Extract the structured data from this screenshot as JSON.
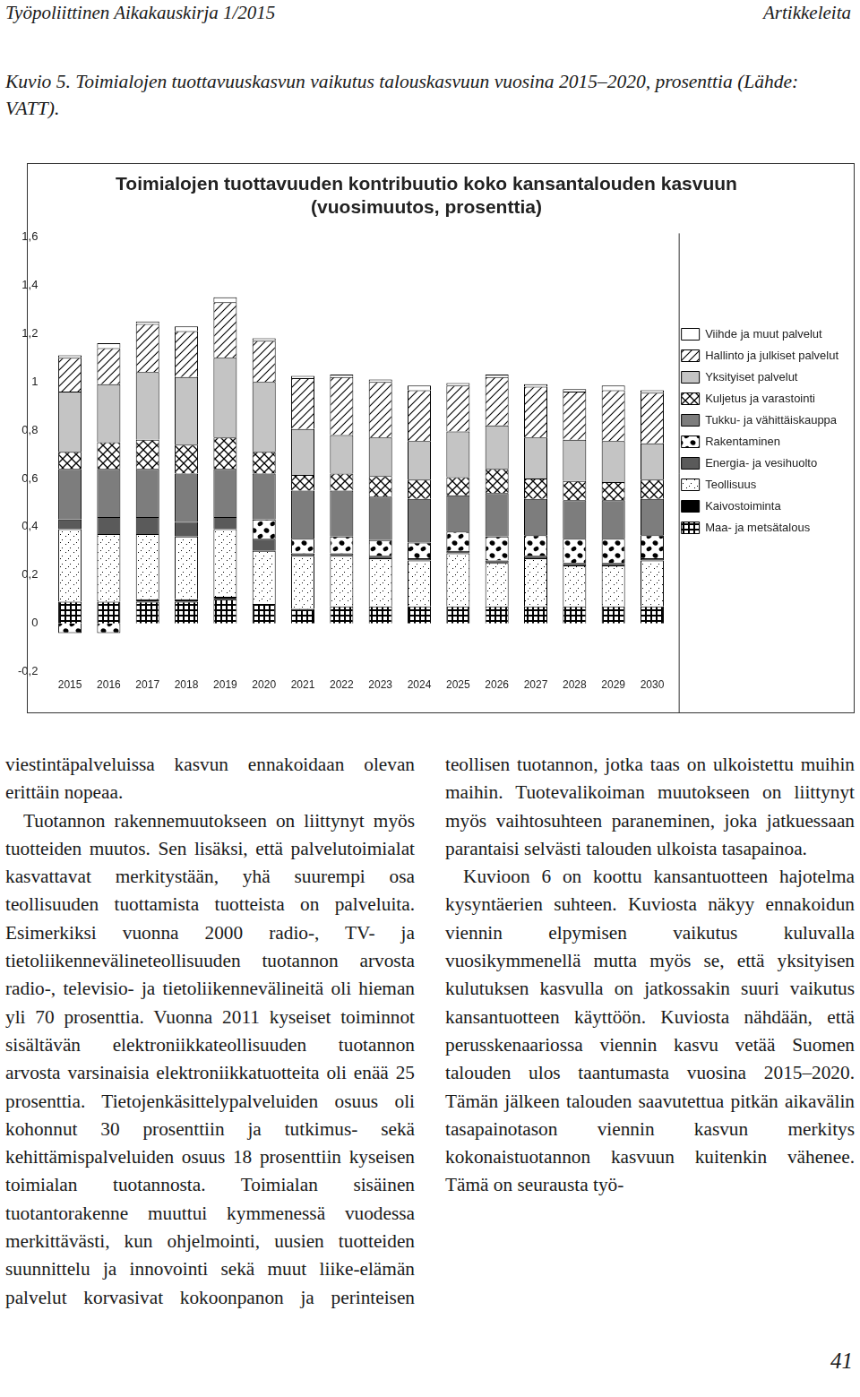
{
  "header": {
    "journal": "Työpoliittinen Aikakauskirja 1/2015",
    "section": "Artikkeleita"
  },
  "caption": "Kuvio 5. Toimialojen tuottavuuskasvun vaikutus talouskasvuun vuosina 2015–2020, prosenttia (Lähde: VATT).",
  "chart_data": {
    "type": "bar",
    "stacked": true,
    "grid": false,
    "legend": "right",
    "title": [
      "Toimialojen tuottavuuden kontribuutio koko kansantalouden kasvuun",
      "(vuosimuutos, prosenttia)"
    ],
    "categories": [
      "2015",
      "2016",
      "2017",
      "2018",
      "2019",
      "2020",
      "2021",
      "2022",
      "2023",
      "2024",
      "2025",
      "2026",
      "2027",
      "2028",
      "2029",
      "2030"
    ],
    "ylim": [
      -0.2,
      1.6
    ],
    "yticks": [
      {
        "value": -0.2,
        "label": "-0,2"
      },
      0,
      {
        "value": 0.2,
        "label": "0,2"
      },
      {
        "value": 0.4,
        "label": "0,4"
      },
      {
        "value": 0.6,
        "label": "0,6"
      },
      {
        "value": 0.8,
        "label": "0,8"
      },
      1,
      {
        "value": 1.2,
        "label": "1,2"
      },
      {
        "value": 1.4,
        "label": "1,4"
      },
      {
        "value": 1.6,
        "label": "1,6"
      }
    ],
    "series": [
      {
        "name": "Maa- ja metsätalous",
        "color": "#000000",
        "values": [
          0.09,
          0.09,
          0.09,
          0.09,
          0.1,
          0.08,
          0.06,
          0.07,
          0.07,
          0.07,
          0.07,
          0.07,
          0.07,
          0.07,
          0.07,
          0.07
        ]
      },
      {
        "name": "Kaivostoiminta",
        "color": "#000000",
        "values": [
          0,
          0,
          0.01,
          0.01,
          0.01,
          0,
          0,
          0,
          0,
          0,
          0,
          0,
          0,
          0,
          0,
          0
        ]
      },
      {
        "name": "Teollisuus",
        "color": "#000000",
        "values": [
          0.3,
          0.28,
          0.27,
          0.26,
          0.28,
          0.22,
          0.22,
          0.21,
          0.2,
          0.19,
          0.22,
          0.18,
          0.2,
          0.17,
          0.17,
          0.19
        ]
      },
      {
        "name": "Energia- ja vesihuolto",
        "color": "#5a5a5a",
        "values": [
          0.04,
          0.07,
          0.07,
          0.06,
          0.05,
          0.05,
          0.01,
          0.01,
          0.01,
          0.01,
          0.01,
          0.01,
          0.01,
          0.01,
          0.01,
          0.01
        ]
      },
      {
        "name": "Rakentaminen",
        "color": "#000000",
        "values": [
          -0.04,
          -0.04,
          0,
          0,
          0,
          0.08,
          0.06,
          0.07,
          0.065,
          0.065,
          0.08,
          0.1,
          0.085,
          0.1,
          0.1,
          0.095
        ]
      },
      {
        "name": "Tukku- ja vähittäiskauppa",
        "color": "#7d7d7d",
        "values": [
          0.21,
          0.2,
          0.2,
          0.2,
          0.2,
          0.19,
          0.2,
          0.19,
          0.18,
          0.18,
          0.15,
          0.18,
          0.15,
          0.16,
          0.16,
          0.15
        ]
      },
      {
        "name": "Kuljetus ja varastointi",
        "color": "#000000",
        "values": [
          0.07,
          0.11,
          0.12,
          0.12,
          0.13,
          0.09,
          0.065,
          0.07,
          0.085,
          0.08,
          0.075,
          0.1,
          0.085,
          0.08,
          0.075,
          0.08
        ]
      },
      {
        "name": "Yksityiset palvelut",
        "color": "#c4c4c4",
        "values": [
          0.25,
          0.24,
          0.28,
          0.28,
          0.33,
          0.29,
          0.19,
          0.16,
          0.16,
          0.16,
          0.19,
          0.18,
          0.17,
          0.17,
          0.17,
          0.15
        ]
      },
      {
        "name": "Hallinto ja julkiset palvelut",
        "color": "#000000",
        "values": [
          0.14,
          0.15,
          0.2,
          0.19,
          0.23,
          0.17,
          0.21,
          0.24,
          0.23,
          0.21,
          0.19,
          0.2,
          0.21,
          0.2,
          0.21,
          0.21
        ]
      },
      {
        "name": "Viihde ja muut palvelut",
        "color": "#ffffff",
        "values": [
          0.01,
          0.02,
          0.01,
          0.02,
          0.02,
          0.01,
          0.01,
          0.01,
          0.01,
          0.02,
          0.01,
          0.01,
          0.01,
          0.01,
          0.02,
          0.01
        ]
      }
    ]
  },
  "body": {
    "paragraphs": [
      "viestintäpalveluissa kasvun ennakoidaan olevan erittäin nopeaa.",
      "Tuotannon rakennemuutokseen on liittynyt myös tuotteiden muutos. Sen lisäksi, että palvelutoimialat kasvattavat merkitystään, yhä suurempi osa teollisuuden tuottamista tuotteista on palveluita. Esimerkiksi vuonna 2000 radio-, TV- ja tietoliikennevälineteollisuuden tuotannon arvosta radio-, televisio- ja tietoliikennevälineitä oli hieman yli 70 prosenttia. Vuonna 2011 kyseiset toiminnot sisältävän elektroniikkateollisuuden tuotannon arvosta varsinaisia elektroniikkatuotteita oli enää 25 prosenttia. Tietojenkäsittelypalveluiden osuus oli kohonnut 30 prosenttiin ja tutkimus- sekä kehittämispalveluiden osuus 18 prosenttiin kyseisen toimialan tuotannosta. Toimialan sisäinen tuotantorakenne muuttui kymmenessä vuodessa merkittävästi, kun ohjelmointi, uusien tuotteiden suunnittelu ja innovointi sekä muut liike-elämän palvelut korvasivat kokoonpanon ja perinteisen teollisen tuotannon, jotka taas on ulkoistettu muihin maihin. Tuotevalikoiman muutokseen on liittynyt myös vaihtosuhteen paraneminen, joka jatkuessaan parantaisi selvästi talouden ulkoista tasapainoa.",
      "Kuvioon 6 on koottu kansantuotteen hajotelma kysyntäerien suhteen. Kuviosta näkyy ennakoidun viennin elpymisen vaikutus kuluvalla vuosikymmenellä mutta myös se, että yksityisen kulutuksen kasvulla on jatkossakin suuri vaikutus kansantuotteen käyttöön. Kuviosta nähdään, että perusskenaariossa viennin kasvu vetää Suomen talouden ulos taantumasta vuosina 2015–2020. Tämän jälkeen talouden saavutettua pitkän aikavälin tasapainotason viennin kasvun merkitys kokonaistuotannon kasvuun kuitenkin vähenee. Tämä on seurausta työ-"
    ]
  },
  "page_number": 41
}
